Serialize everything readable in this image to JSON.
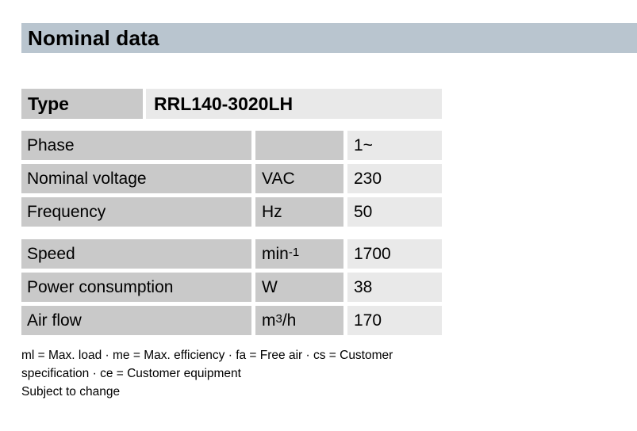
{
  "title": "Nominal data",
  "type_row": {
    "label": "Type",
    "value": "RRL140-3020LH"
  },
  "table": {
    "groups": [
      {
        "rows": [
          {
            "label": "Phase",
            "unit_base": "",
            "unit_sup": "",
            "unit_tail": "",
            "value": "1~"
          },
          {
            "label": "Nominal voltage",
            "unit_base": "VAC",
            "unit_sup": "",
            "unit_tail": "",
            "value": "230"
          },
          {
            "label": "Frequency",
            "unit_base": "Hz",
            "unit_sup": "",
            "unit_tail": "",
            "value": "50"
          }
        ]
      },
      {
        "rows": [
          {
            "label": "Speed",
            "unit_base": "min",
            "unit_sup": "-1",
            "unit_tail": "",
            "value": "1700"
          },
          {
            "label": "Power consumption",
            "unit_base": "W",
            "unit_sup": "",
            "unit_tail": "",
            "value": "38"
          },
          {
            "label": "Air flow",
            "unit_base": "m",
            "unit_sup": "3",
            "unit_tail": "/h",
            "value": "170"
          }
        ]
      }
    ]
  },
  "footer": {
    "legend": "ml = Max. load · me = Max. efficiency · fa = Free air · cs = Customer specification · ce = Customer equipment",
    "note": "Subject to change"
  },
  "colors": {
    "title_bar": "#b9c5cf",
    "label_cell": "#c9c9c9",
    "value_cell": "#e9e9e9",
    "text": "#000000"
  }
}
